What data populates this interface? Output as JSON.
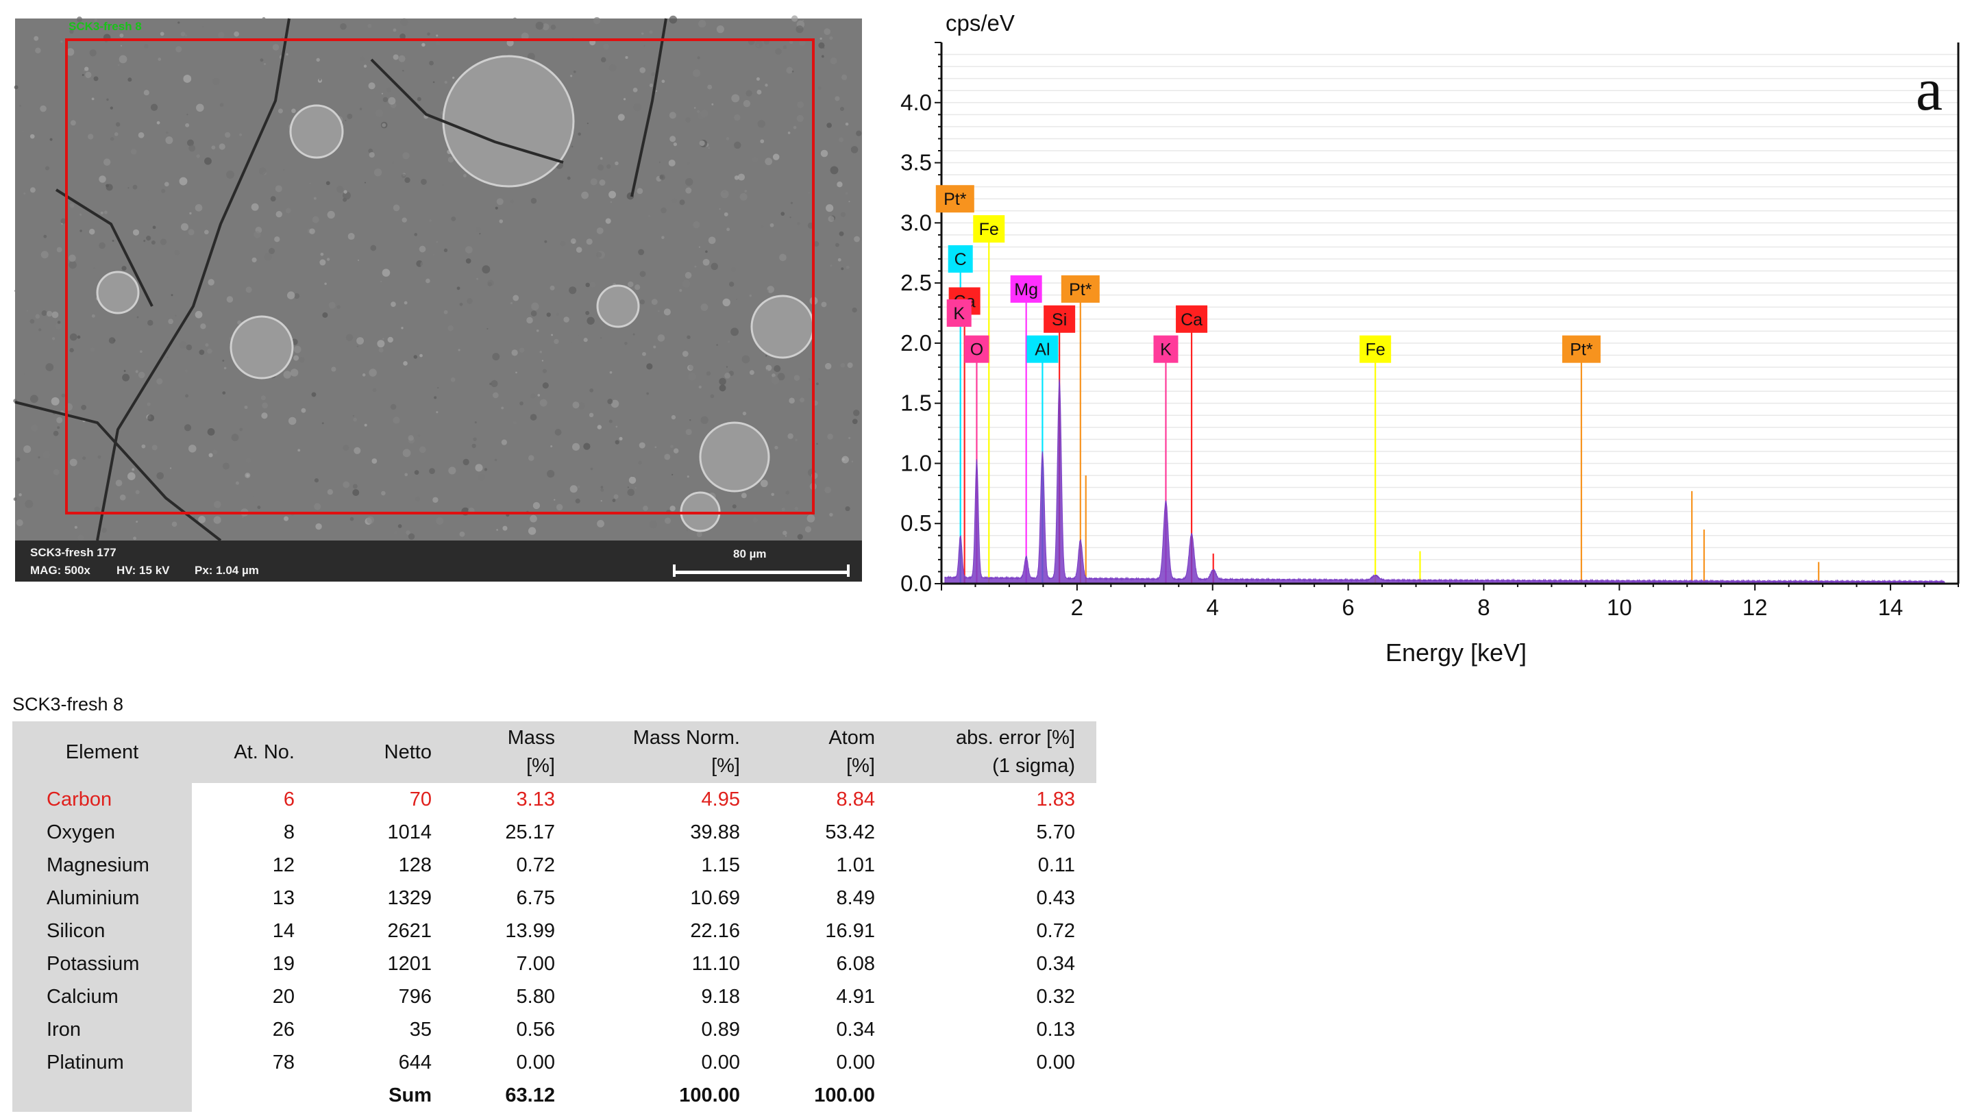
{
  "sem": {
    "sample_label": "SCK3-fresh 8",
    "image_name": "SCK3-fresh 177",
    "mag": "MAG: 500x",
    "hv": "HV: 15 kV",
    "px": "Px: 1.04 µm",
    "scale_label": "80 µm"
  },
  "chart_data": {
    "type": "line",
    "panel_label": "a",
    "ylabel": "cps/eV",
    "xlabel": "Energy [keV]",
    "xlim": [
      0,
      15
    ],
    "ylim": [
      0,
      4.5
    ],
    "x_ticks": [
      2,
      4,
      6,
      8,
      10,
      12,
      14
    ],
    "y_ticks": [
      "0.0",
      "0.5",
      "1.0",
      "1.5",
      "2.0",
      "2.5",
      "3.0",
      "3.5",
      "4.0"
    ],
    "grid": true,
    "colors": {
      "spectrum": "#7a3cc4",
      "Pt*": "#f7931e",
      "Fe": "#ffff00",
      "C": "#00e5ff",
      "Ca": "#ff2020",
      "K": "#ff3a9a",
      "Mg": "#ff30ff",
      "Si": "#ff2020",
      "O": "#ff3a9a",
      "Al": "#00e5ff"
    },
    "element_markers": [
      {
        "label": "Pt*",
        "energy": 0.2,
        "level": 3.2,
        "line": false
      },
      {
        "label": "Fe",
        "energy": 0.7,
        "level": 2.95,
        "line": true
      },
      {
        "label": "C",
        "energy": 0.28,
        "level": 2.7,
        "line": true
      },
      {
        "label": "Mg",
        "energy": 1.25,
        "level": 2.45,
        "line": true
      },
      {
        "label": "Pt*",
        "energy": 2.05,
        "level": 2.45,
        "line": true
      },
      {
        "label": "Ca",
        "energy": 0.34,
        "level": 2.35,
        "line": true
      },
      {
        "label": "K",
        "energy": 0.26,
        "level": 2.25,
        "line": false
      },
      {
        "label": "Si",
        "energy": 1.74,
        "level": 2.2,
        "line": true
      },
      {
        "label": "Ca",
        "energy": 3.69,
        "level": 2.2,
        "line": true
      },
      {
        "label": "O",
        "energy": 0.52,
        "level": 1.95,
        "line": true
      },
      {
        "label": "Al",
        "energy": 1.49,
        "level": 1.95,
        "line": true
      },
      {
        "label": "K",
        "energy": 3.31,
        "level": 1.95,
        "line": true
      },
      {
        "label": "Fe",
        "energy": 6.4,
        "level": 1.95,
        "line": true
      },
      {
        "label": "Pt*",
        "energy": 9.44,
        "level": 1.95,
        "line": true
      }
    ],
    "minor_lines": [
      {
        "energy": 2.13,
        "top": 0.9,
        "color": "#f7931e"
      },
      {
        "energy": 4.01,
        "top": 0.25,
        "color": "#ff2020"
      },
      {
        "energy": 7.06,
        "top": 0.27,
        "color": "#ffff00"
      },
      {
        "energy": 11.07,
        "top": 0.77,
        "color": "#f7931e"
      },
      {
        "energy": 11.25,
        "top": 0.45,
        "color": "#f7931e"
      },
      {
        "energy": 12.94,
        "top": 0.18,
        "color": "#f7931e"
      }
    ],
    "peaks": [
      {
        "energy": 0.28,
        "height": 0.35
      },
      {
        "energy": 0.52,
        "height": 0.98
      },
      {
        "energy": 1.25,
        "height": 0.18
      },
      {
        "energy": 1.49,
        "height": 1.05
      },
      {
        "energy": 1.74,
        "height": 1.65
      },
      {
        "energy": 2.05,
        "height": 0.32
      },
      {
        "energy": 3.31,
        "height": 0.65
      },
      {
        "energy": 3.69,
        "height": 0.38
      },
      {
        "energy": 4.01,
        "height": 0.08
      },
      {
        "energy": 6.4,
        "height": 0.04
      }
    ],
    "background_level": 0.04
  },
  "table": {
    "title": "SCK3-fresh 8",
    "headers": [
      {
        "l1": "Element",
        "l2": ""
      },
      {
        "l1": "At. No.",
        "l2": ""
      },
      {
        "l1": "Netto",
        "l2": ""
      },
      {
        "l1": "Mass",
        "l2": "[%]"
      },
      {
        "l1": "Mass Norm.",
        "l2": "[%]"
      },
      {
        "l1": "Atom",
        "l2": "[%]"
      },
      {
        "l1": "abs. error [%]",
        "l2": "(1 sigma)"
      }
    ],
    "rows": [
      [
        "Carbon",
        "6",
        "70",
        "3.13",
        "4.95",
        "8.84",
        "1.83"
      ],
      [
        "Oxygen",
        "8",
        "1014",
        "25.17",
        "39.88",
        "53.42",
        "5.70"
      ],
      [
        "Magnesium",
        "12",
        "128",
        "0.72",
        "1.15",
        "1.01",
        "0.11"
      ],
      [
        "Aluminium",
        "13",
        "1329",
        "6.75",
        "10.69",
        "8.49",
        "0.43"
      ],
      [
        "Silicon",
        "14",
        "2621",
        "13.99",
        "22.16",
        "16.91",
        "0.72"
      ],
      [
        "Potassium",
        "19",
        "1201",
        "7.00",
        "11.10",
        "6.08",
        "0.34"
      ],
      [
        "Calcium",
        "20",
        "796",
        "5.80",
        "9.18",
        "4.91",
        "0.32"
      ],
      [
        "Iron",
        "26",
        "35",
        "0.56",
        "0.89",
        "0.34",
        "0.13"
      ],
      [
        "Platinum",
        "78",
        "644",
        "0.00",
        "0.00",
        "0.00",
        "0.00"
      ]
    ],
    "sum_row": [
      "",
      "",
      "Sum",
      "63.12",
      "100.00",
      "100.00",
      ""
    ]
  }
}
